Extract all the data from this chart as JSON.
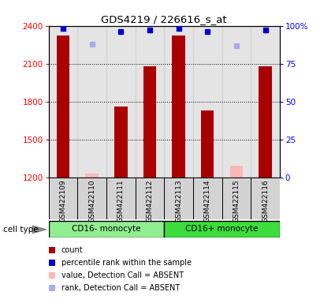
{
  "title": "GDS4219 / 226616_s_at",
  "samples": [
    "GSM422109",
    "GSM422110",
    "GSM422111",
    "GSM422112",
    "GSM422113",
    "GSM422114",
    "GSM422115",
    "GSM422116"
  ],
  "count_values": [
    2320,
    null,
    1760,
    2080,
    2320,
    1730,
    null,
    2080
  ],
  "count_absent_values": [
    null,
    1230,
    null,
    null,
    null,
    null,
    1290,
    null
  ],
  "percentile_values": [
    98,
    null,
    96,
    97,
    98,
    96,
    null,
    97
  ],
  "percentile_absent_values": [
    null,
    88,
    null,
    null,
    null,
    null,
    87,
    null
  ],
  "ylim_left": [
    1200,
    2400
  ],
  "ylim_right": [
    0,
    100
  ],
  "yticks_left": [
    1200,
    1500,
    1800,
    2100,
    2400
  ],
  "yticks_right": [
    0,
    25,
    50,
    75,
    100
  ],
  "cell_types": [
    {
      "label": "CD16- monocyte",
      "start": 0,
      "end": 4,
      "color": "#90ee90"
    },
    {
      "label": "CD16+ monocyte",
      "start": 4,
      "end": 8,
      "color": "#3ddd3d"
    }
  ],
  "bar_color_present": "#aa0000",
  "bar_color_absent": "#ffb6b6",
  "dot_color_present": "#0000cc",
  "dot_color_absent": "#aaaaee",
  "bg_sample_color": "#d3d3d3",
  "legend_items": [
    {
      "color": "#aa0000",
      "label": "count"
    },
    {
      "color": "#0000cc",
      "label": "percentile rank within the sample"
    },
    {
      "color": "#ffb6b6",
      "label": "value, Detection Call = ABSENT"
    },
    {
      "color": "#aaaaee",
      "label": "rank, Detection Call = ABSENT"
    }
  ]
}
